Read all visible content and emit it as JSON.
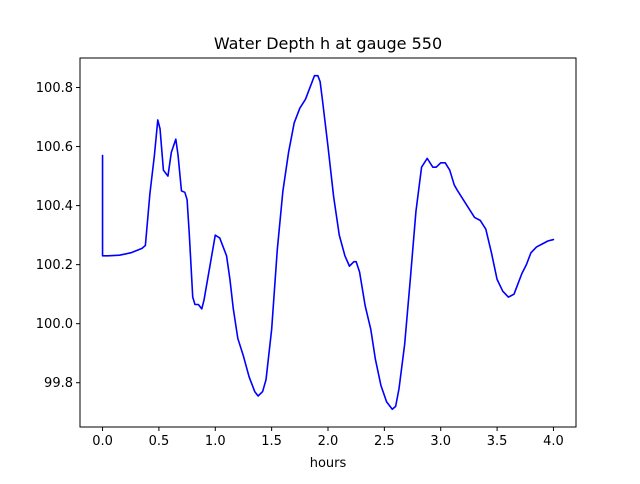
{
  "chart_data": {
    "type": "line",
    "title": "Water Depth h at gauge 550",
    "xlabel": "hours",
    "ylabel": "",
    "xlim": [
      -0.2,
      4.2
    ],
    "ylim": [
      99.65,
      100.9
    ],
    "xticks": [
      0.0,
      0.5,
      1.0,
      1.5,
      2.0,
      2.5,
      3.0,
      3.5,
      4.0
    ],
    "xtick_labels": [
      "0.0",
      "0.5",
      "1.0",
      "1.5",
      "2.0",
      "2.5",
      "3.0",
      "3.5",
      "4.0"
    ],
    "yticks": [
      99.8,
      100.0,
      100.2,
      100.4,
      100.6,
      100.8
    ],
    "ytick_labels": [
      "99.8",
      "100.0",
      "100.2",
      "100.4",
      "100.6",
      "100.8"
    ],
    "grid": false,
    "line_color": "#0000ff",
    "series": [
      {
        "x": [
          0.0,
          0.0,
          0.05,
          0.15,
          0.25,
          0.35,
          0.38,
          0.42,
          0.46,
          0.49,
          0.51,
          0.54,
          0.58,
          0.61,
          0.65,
          0.67,
          0.7,
          0.73,
          0.75,
          0.77,
          0.8,
          0.82,
          0.85,
          0.88,
          0.9,
          0.95,
          1.0,
          1.04,
          1.07,
          1.1,
          1.13,
          1.16,
          1.2,
          1.25,
          1.3,
          1.35,
          1.38,
          1.42,
          1.45,
          1.5,
          1.55,
          1.6,
          1.65,
          1.7,
          1.75,
          1.8,
          1.85,
          1.88,
          1.91,
          1.93,
          1.95,
          2.0,
          2.05,
          2.1,
          2.15,
          2.19,
          2.23,
          2.25,
          2.28,
          2.33,
          2.38,
          2.42,
          2.47,
          2.52,
          2.57,
          2.6,
          2.63,
          2.68,
          2.73,
          2.78,
          2.83,
          2.88,
          2.93,
          2.96,
          3.0,
          3.04,
          3.08,
          3.12,
          3.15,
          3.2,
          3.25,
          3.3,
          3.35,
          3.4,
          3.45,
          3.5,
          3.55,
          3.6,
          3.65,
          3.68,
          3.72,
          3.76,
          3.8,
          3.85,
          3.9,
          3.95,
          4.0
        ],
        "y": [
          100.57,
          100.23,
          100.23,
          100.232,
          100.24,
          100.255,
          100.265,
          100.44,
          100.57,
          100.69,
          100.66,
          100.52,
          100.5,
          100.58,
          100.625,
          100.57,
          100.45,
          100.445,
          100.42,
          100.3,
          100.09,
          100.065,
          100.065,
          100.05,
          100.08,
          100.19,
          100.3,
          100.29,
          100.26,
          100.23,
          100.15,
          100.05,
          99.95,
          99.89,
          99.82,
          99.77,
          99.755,
          99.77,
          99.81,
          99.98,
          100.25,
          100.45,
          100.58,
          100.68,
          100.73,
          100.76,
          100.81,
          100.84,
          100.84,
          100.82,
          100.76,
          100.6,
          100.43,
          100.3,
          100.23,
          100.195,
          100.21,
          100.21,
          100.175,
          100.06,
          99.98,
          99.88,
          99.79,
          99.735,
          99.71,
          99.72,
          99.78,
          99.93,
          100.15,
          100.38,
          100.53,
          100.56,
          100.53,
          100.53,
          100.545,
          100.545,
          100.52,
          100.47,
          100.45,
          100.42,
          100.39,
          100.36,
          100.35,
          100.32,
          100.24,
          100.15,
          100.11,
          100.09,
          100.1,
          100.13,
          100.17,
          100.2,
          100.24,
          100.26,
          100.27,
          100.28,
          100.285
        ]
      }
    ]
  }
}
